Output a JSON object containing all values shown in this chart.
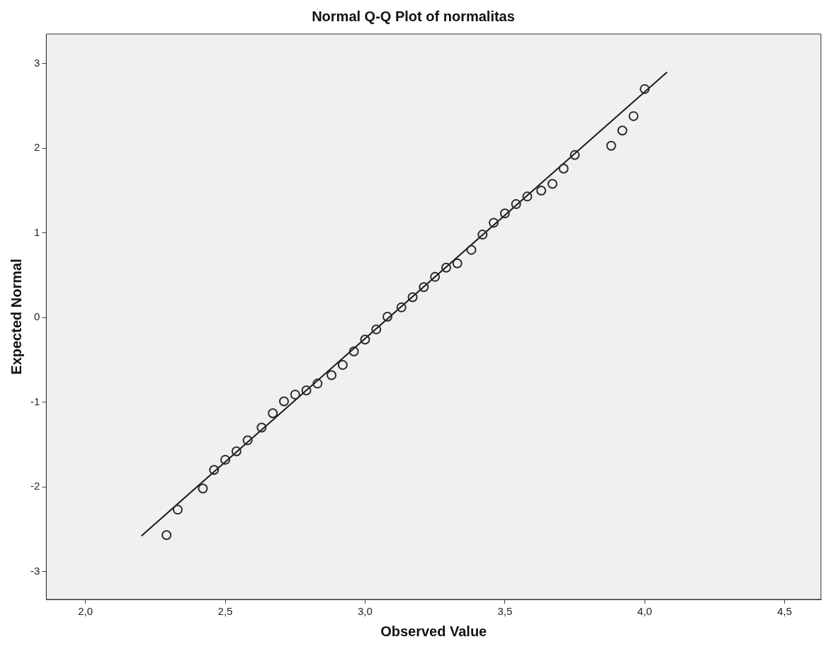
{
  "chart_data": {
    "type": "scatter",
    "title": "Normal Q-Q Plot of normalitas",
    "xlabel": "Observed Value",
    "ylabel": "Expected Normal",
    "xlim": [
      1.86,
      4.63
    ],
    "ylim": [
      -3.33,
      3.35
    ],
    "xticks": [
      {
        "value": 2,
        "label": "2,0"
      },
      {
        "value": 2.5,
        "label": "2,5"
      },
      {
        "value": 3,
        "label": "3,0"
      },
      {
        "value": 3.5,
        "label": "3,5"
      },
      {
        "value": 4,
        "label": "4,0"
      },
      {
        "value": 4.5,
        "label": "4,5"
      }
    ],
    "yticks": [
      -3,
      -2,
      -1,
      0,
      1,
      2,
      3
    ],
    "grid": false,
    "legend": false,
    "series": [
      {
        "color": "#2b2b2b",
        "marker": "circle",
        "x": [
          2.29,
          2.33,
          2.42,
          2.46,
          2.5,
          2.54,
          2.58,
          2.63,
          2.67,
          2.71,
          2.75,
          2.79,
          2.83,
          2.88,
          2.92,
          2.96,
          3.0,
          3.04,
          3.08,
          3.13,
          3.17,
          3.21,
          3.25,
          3.29,
          3.33,
          3.38,
          3.42,
          3.46,
          3.5,
          3.54,
          3.58,
          3.63,
          3.67,
          3.71,
          3.75,
          3.88,
          3.92,
          3.96,
          4.0
        ],
        "values": [
          -2.57,
          -2.27,
          -2.02,
          -1.8,
          -1.68,
          -1.58,
          -1.45,
          -1.3,
          -1.13,
          -0.99,
          -0.91,
          -0.86,
          -0.78,
          -0.68,
          -0.56,
          -0.4,
          -0.26,
          -0.14,
          0.01,
          0.12,
          0.24,
          0.36,
          0.48,
          0.59,
          0.64,
          0.8,
          0.98,
          1.12,
          1.23,
          1.34,
          1.43,
          1.5,
          1.58,
          1.76,
          1.92,
          2.03,
          2.21,
          2.38,
          2.7
        ]
      },
      {
        "type": "line",
        "color": "#1a1a1a",
        "marker": "none",
        "line_style": "solid",
        "x": [
          2.2,
          4.08
        ],
        "values": [
          -2.58,
          2.9
        ]
      }
    ]
  }
}
